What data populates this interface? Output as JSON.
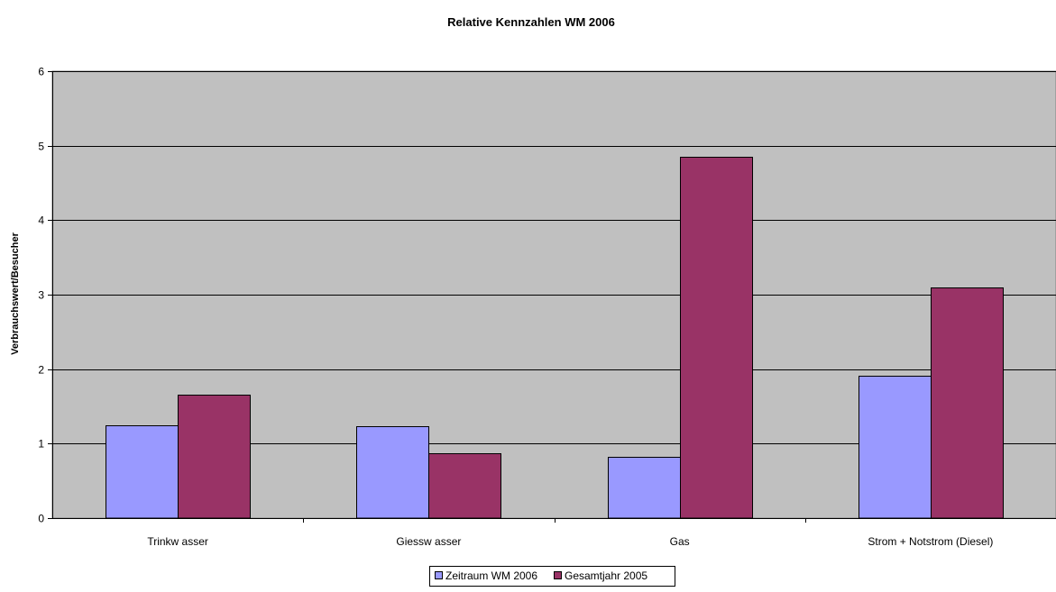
{
  "chart_data": {
    "type": "bar",
    "title": "Relative Kennzahlen WM 2006",
    "xlabel": "",
    "ylabel": "Verbrauchswert/Besucher",
    "ylim": [
      0,
      6
    ],
    "yticks": [
      0,
      1,
      2,
      3,
      4,
      5,
      6
    ],
    "grid": true,
    "legend_position": "bottom",
    "categories": [
      "Trinkw asser",
      "Giessw asser",
      "Gas",
      "Strom + Notstrom (Diesel)"
    ],
    "series": [
      {
        "name": "Zeitraum WM 2006",
        "color": "#9999ff",
        "values": [
          1.25,
          1.23,
          0.82,
          1.91
        ]
      },
      {
        "name": "Gesamtjahr 2005",
        "color": "#993366",
        "values": [
          1.66,
          0.87,
          4.85,
          3.1
        ]
      }
    ],
    "plot_background": "#c0c0c0"
  }
}
